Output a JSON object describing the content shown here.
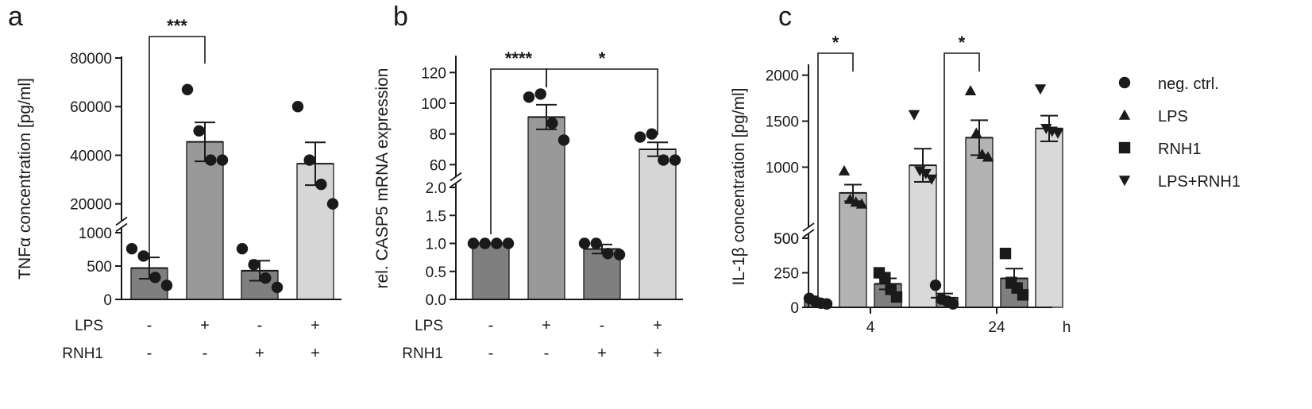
{
  "chart_data": [
    {
      "panel": "a",
      "type": "bar",
      "ylabel": "TNFα concentration [pg/ml]",
      "y_segments": [
        {
          "range": [
            0,
            1000
          ],
          "ticks": [
            0,
            500,
            1000
          ],
          "tick_labels": [
            "0",
            "500",
            "1000"
          ]
        },
        {
          "range": [
            15000,
            80000
          ],
          "ticks": [
            20000,
            40000,
            60000,
            80000
          ],
          "tick_labels": [
            "20000",
            "40000",
            "60000",
            "80000"
          ]
        }
      ],
      "condition_rows": [
        {
          "label": "LPS",
          "signs": [
            "-",
            "+",
            "-",
            "+"
          ]
        },
        {
          "label": "RNH1",
          "signs": [
            "-",
            "-",
            "+",
            "+"
          ]
        }
      ],
      "bars": [
        {
          "mean": 470,
          "sem": 160,
          "color": "#7f7f7f",
          "points": [
            760,
            650,
            330,
            210
          ]
        },
        {
          "mean": 45500,
          "sem": 8000,
          "color": "#999999",
          "points": [
            67000,
            50000,
            38000,
            38000
          ]
        },
        {
          "mean": 430,
          "sem": 150,
          "color": "#7f7f7f",
          "points": [
            760,
            520,
            320,
            180
          ]
        },
        {
          "mean": 36500,
          "sem": 8800,
          "color": "#d6d6d6",
          "points": [
            60000,
            38000,
            28000,
            20000
          ]
        }
      ],
      "significance": [
        {
          "from": 0,
          "to": 1,
          "label": "***"
        }
      ]
    },
    {
      "panel": "b",
      "type": "bar",
      "ylabel": "rel. CASP5 mRNA expression",
      "y_segments": [
        {
          "range": [
            0,
            2
          ],
          "ticks": [
            0,
            0.5,
            1,
            1.5,
            2
          ],
          "tick_labels": [
            "0.0",
            "0.5",
            "1.0",
            "1.5",
            "2.0"
          ]
        },
        {
          "range": [
            55,
            130
          ],
          "ticks": [
            60,
            80,
            100,
            120
          ],
          "tick_labels": [
            "60",
            "80",
            "100",
            "120"
          ]
        }
      ],
      "condition_rows": [
        {
          "label": "LPS",
          "signs": [
            "-",
            "+",
            "-",
            "+"
          ]
        },
        {
          "label": "RNH1",
          "signs": [
            "-",
            "-",
            "+",
            "+"
          ]
        }
      ],
      "bars": [
        {
          "mean": 1.0,
          "sem": 0.0,
          "color": "#7f7f7f",
          "points": [
            1.0,
            1.0,
            1.0,
            1.0
          ]
        },
        {
          "mean": 91,
          "sem": 8,
          "color": "#999999",
          "points": [
            104,
            106,
            87,
            76
          ]
        },
        {
          "mean": 0.9,
          "sem": 0.08,
          "color": "#7f7f7f",
          "points": [
            1.0,
            1.0,
            0.82,
            0.8
          ]
        },
        {
          "mean": 70,
          "sem": 4.5,
          "color": "#d6d6d6",
          "points": [
            78,
            80,
            63,
            63
          ]
        }
      ],
      "significance": [
        {
          "from": 0,
          "to": 1,
          "label": "****"
        },
        {
          "from": 1,
          "to": 3,
          "label": "*"
        }
      ]
    },
    {
      "panel": "c",
      "type": "bar",
      "ylabel": "IL-1β concentration [pg/ml]",
      "x_unit": "h",
      "categories": [
        "4",
        "24"
      ],
      "y_segments": [
        {
          "range": [
            0,
            500
          ],
          "ticks": [
            0,
            250,
            500
          ],
          "tick_labels": [
            "0",
            "250",
            "500"
          ]
        },
        {
          "range": [
            400,
            2100
          ],
          "ticks": [
            500,
            1000,
            1500,
            2000
          ],
          "tick_labels": [
            "500",
            "1000",
            "1500",
            "2000"
          ]
        }
      ],
      "series": [
        {
          "name": "neg. ctrl.",
          "marker": "circle",
          "color": "#7f7f7f",
          "means": [
            40,
            70
          ],
          "sems": [
            12,
            30
          ],
          "points": [
            [
              65,
              45,
              30,
              25
            ],
            [
              160,
              60,
              45,
              25
            ]
          ]
        },
        {
          "name": "LPS",
          "marker": "triangle-up",
          "color": "#b3b3b3",
          "means": [
            720,
            1320
          ],
          "sems": [
            90,
            190
          ],
          "points": [
            [
              960,
              650,
              620,
              600
            ],
            [
              1830,
              1370,
              1140,
              1110
            ]
          ]
        },
        {
          "name": "RNH1",
          "marker": "square",
          "color": "#7f7f7f",
          "means": [
            170,
            210
          ],
          "sems": [
            40,
            70
          ],
          "points": [
            [
              250,
              215,
              130,
              75
            ],
            [
              390,
              180,
              140,
              90
            ]
          ]
        },
        {
          "name": "LPS+RNH1",
          "marker": "triangle-down",
          "color": "#d9d9d9",
          "means": [
            1020,
            1420
          ],
          "sems": [
            180,
            140
          ],
          "points": [
            [
              1570,
              960,
              930,
              870
            ],
            [
              1850,
              1420,
              1390,
              1370
            ]
          ]
        }
      ],
      "significance": [
        {
          "group": 0,
          "from": 0,
          "to": 1,
          "label": "*"
        },
        {
          "group": 1,
          "from": 0,
          "to": 1,
          "label": "*"
        }
      ]
    }
  ]
}
